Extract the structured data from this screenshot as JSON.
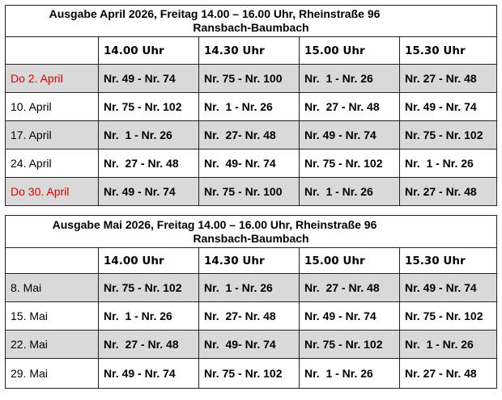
{
  "times": [
    "14.00 Uhr",
    "14.30 Uhr",
    "15.00 Uhr",
    "15.30 Uhr"
  ],
  "april": {
    "title_line1": "Ausgabe April 2026, Freitag 14.00 – 16.00 Uhr, Rheinstraße 96",
    "title_line2": "Ransbach-Baumbach",
    "rows": [
      {
        "date": "Do 2. April",
        "highlight": true,
        "cells": [
          "Nr. 49 - Nr. 74",
          "Nr. 75 - Nr. 100",
          "Nr.  1 - Nr. 26",
          "Nr. 27 - Nr. 48"
        ]
      },
      {
        "date": "10. April",
        "highlight": false,
        "cells": [
          "Nr. 75 - Nr. 102",
          "Nr.  1 - Nr. 26",
          "Nr.  27 - Nr. 48",
          "Nr. 49 - Nr. 74"
        ]
      },
      {
        "date": "17. April",
        "highlight": false,
        "cells": [
          "Nr.  1 - Nr. 26",
          "Nr.  27- Nr. 48",
          "Nr. 49 - Nr. 74",
          "Nr. 75 - Nr. 102"
        ]
      },
      {
        "date": "24. April",
        "highlight": false,
        "cells": [
          "Nr.  27 - Nr. 48",
          "Nr.  49- Nr. 74",
          "Nr. 75 - Nr. 102",
          "Nr.  1 - Nr. 26"
        ]
      },
      {
        "date": "Do 30. April",
        "highlight": true,
        "cells": [
          "Nr. 49 - Nr. 74",
          "Nr. 75 - Nr. 100",
          "Nr.  1 - Nr. 26",
          "Nr. 27 - Nr. 48"
        ]
      }
    ]
  },
  "mai": {
    "title_line1": "Ausgabe Mai 2026, Freitag 14.00 – 16.00 Uhr, Rheinstraße 96",
    "title_line2": "Ransbach-Baumbach",
    "rows": [
      {
        "date": "8. Mai",
        "highlight": false,
        "cells": [
          "Nr. 75 - Nr. 102",
          "Nr.  1 - Nr. 26",
          "Nr.  27 - Nr. 48",
          "Nr. 49 - Nr. 74"
        ]
      },
      {
        "date": "15. Mai",
        "highlight": false,
        "cells": [
          "Nr.  1 - Nr. 26",
          "Nr.  27- Nr. 48",
          "Nr. 49 - Nr. 74",
          "Nr. 75 - Nr. 102"
        ]
      },
      {
        "date": "22. Mai",
        "highlight": false,
        "cells": [
          "Nr.  27 - Nr. 48",
          "Nr.  49- Nr. 74",
          "Nr. 75 - Nr. 102",
          "Nr.  1 - Nr. 26"
        ]
      },
      {
        "date": "29. Mai",
        "highlight": false,
        "cells": [
          "Nr. 49 - Nr. 74",
          "Nr. 75 - Nr. 102",
          "Nr.  1 - Nr. 26",
          "Nr. 27 - Nr. 48"
        ]
      }
    ]
  },
  "colors": {
    "highlight": "#e00000",
    "row_shade": "#d9d9d9"
  }
}
